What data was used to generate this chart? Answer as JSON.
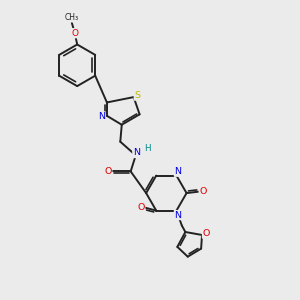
{
  "bg_color": "#ebebeb",
  "bond_color": "#222222",
  "bond_width": 1.4,
  "atom_colors": {
    "N": "#0000dd",
    "O": "#dd0000",
    "S": "#bbbb00",
    "H": "#008888",
    "C": "#222222"
  },
  "fs": 7.0,
  "figsize": [
    3.0,
    3.0
  ],
  "dpi": 100
}
